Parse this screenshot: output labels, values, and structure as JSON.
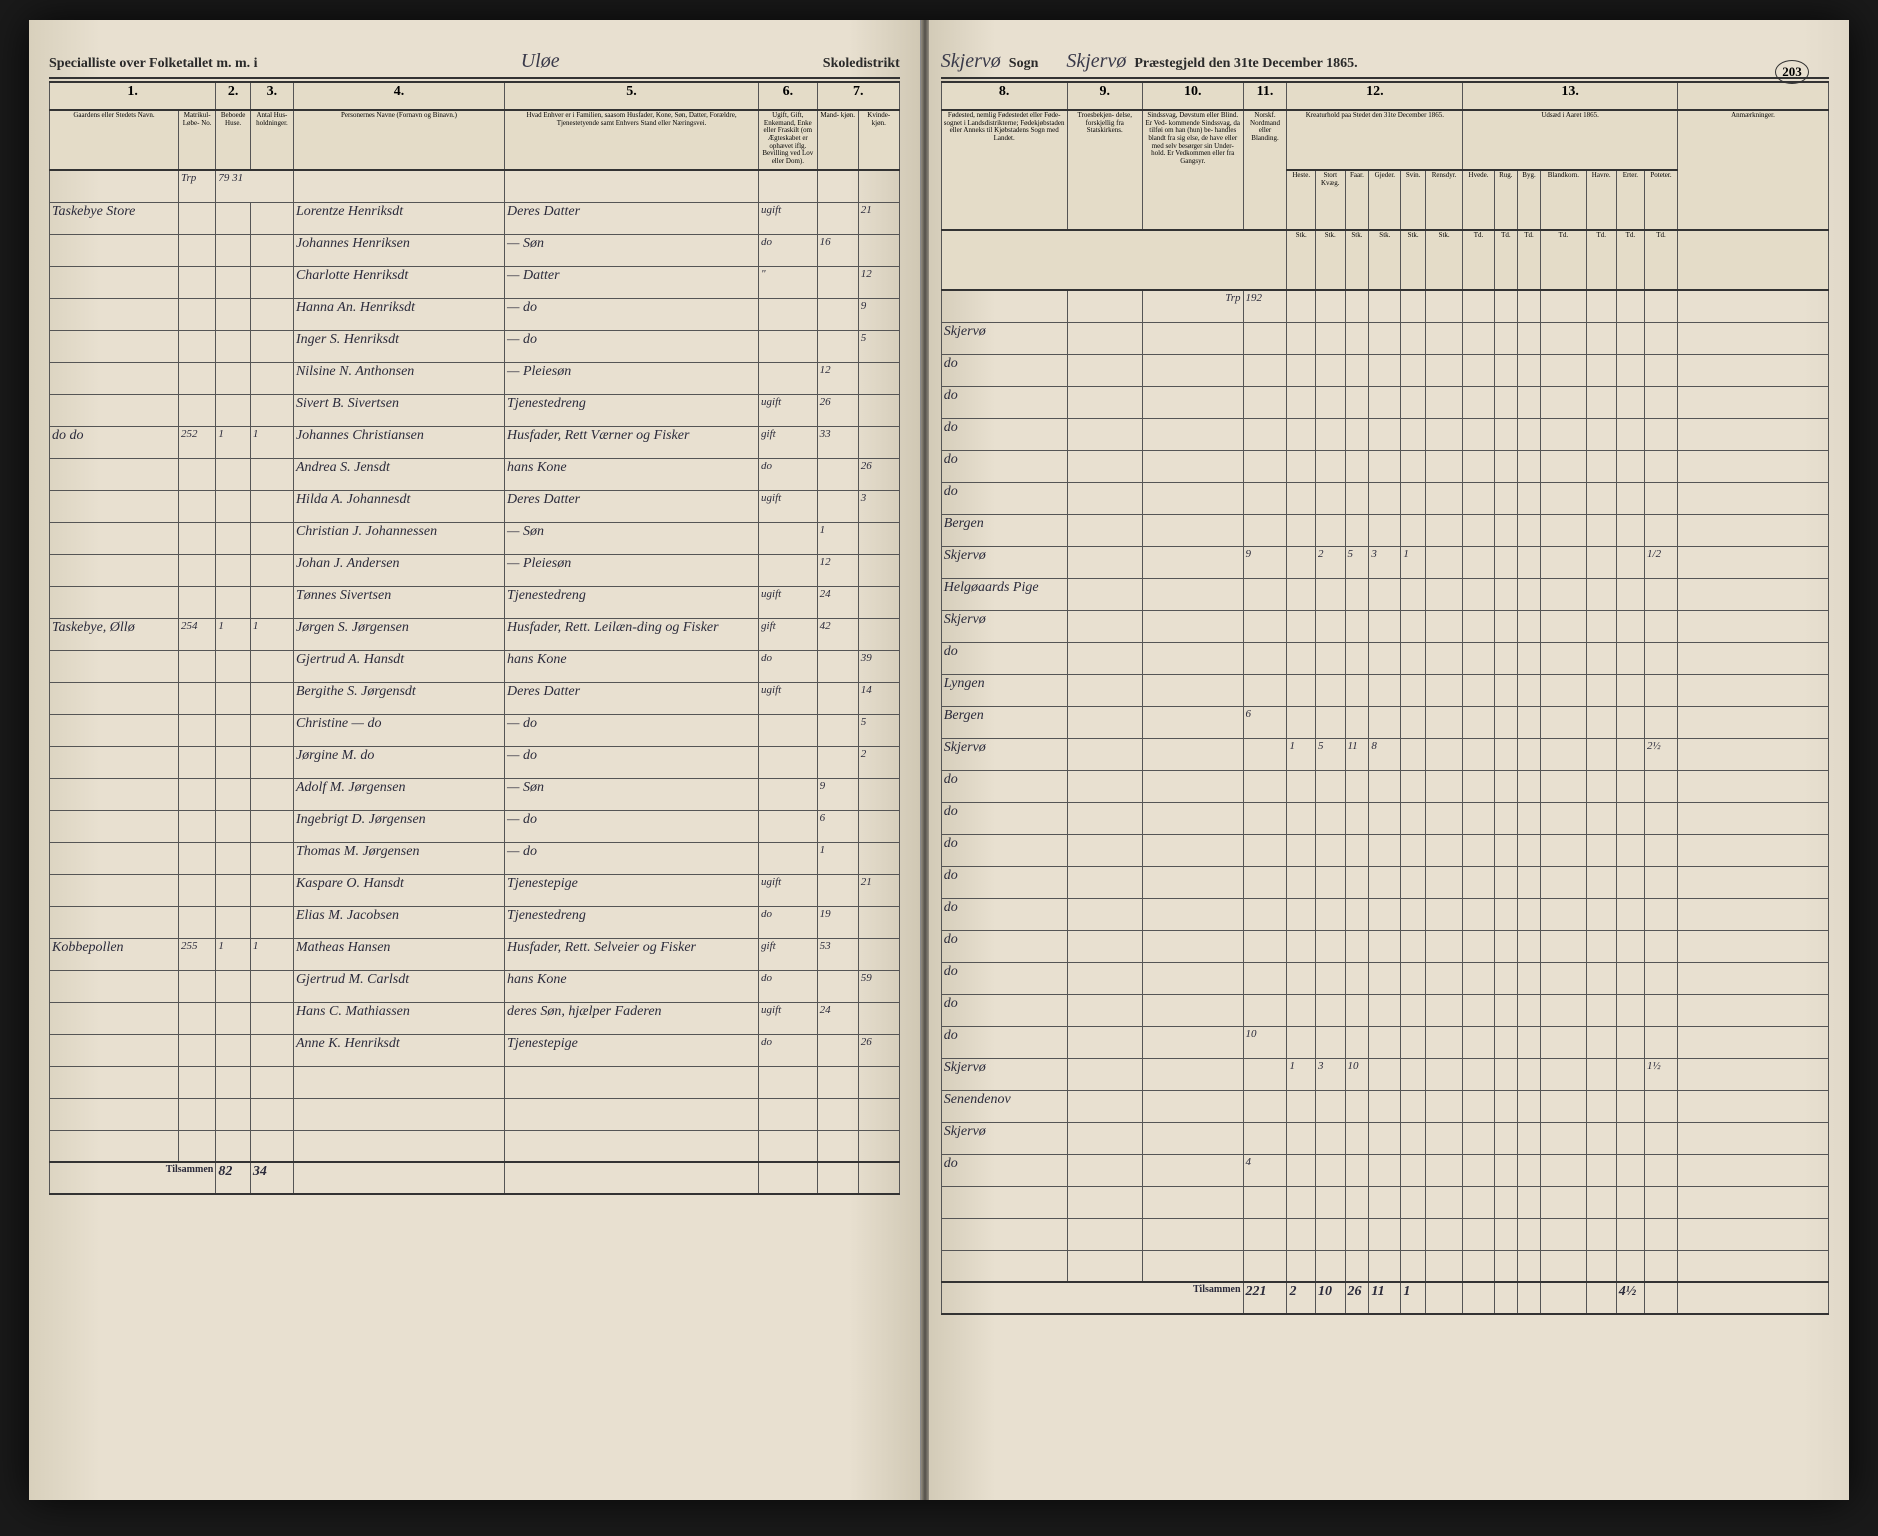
{
  "page_number": "203",
  "header": {
    "left_title": "Specialliste over Folketallet m. m. i",
    "district_hand": "Uløe",
    "school_label": "Skoledistrikt",
    "sogn_hand": "Skjervø",
    "sogn_label": "Sogn",
    "parish_hand": "Skjervø",
    "parish_label": "Præstegjeld den 31te December 1865."
  },
  "left_columns": {
    "c1": "1.",
    "c2": "2.",
    "c3": "3.",
    "c4": "4.",
    "c5": "5.",
    "c6": "6.",
    "c7": "7.",
    "c1_sub": "Gaardens eller Stedets\nNavn.",
    "c1_sub2": "Matrikul-\nLøbe-\nNo.",
    "c2_sub": "Beboede Huse.",
    "c3_sub": "Antal Hus-\nholdninger.",
    "c4_sub": "Personernes Navne (Fornavn og Binavn.)",
    "c5_sub": "Hvad Enhver er i Familien, saasom Husfader,\nKone, Søn, Datter, Forældre, Tjenestetyende\nsamt\nEnhvers Stand eller Næringsvei.",
    "c6_sub": "Ugift, Gift,\nEnkemand,\nEnke eller\nFraskilt (om\nÆgteskabet er\nophævet iflg.\nBevilling\nved Lov eller\nDom).",
    "c7_sub": "Alder.\nDet levende Alders-\naar anføres.",
    "c7a_sub": "Mand-\nkjøn.",
    "c7b_sub": "Kvinde-\nkjøn."
  },
  "right_columns": {
    "c8": "8.",
    "c9": "9.",
    "c10": "10.",
    "c11": "11.",
    "c12": "12.",
    "c13": "13.",
    "c8_sub": "Fødested,\nnemlig Fødestedet eller Føde-\nsognet i Landsdistrikterne;\nFødekjøbstaden eller Anneks til\nKjøbstadens Sogn med\nLandet.",
    "c9_sub": "Troesbekjen-\ndelse,\nforskjellig fra\nStatskirkens.",
    "c10_sub": "Sindssvag, Døvstum\neller Blind. Er Ved-\nkommende Sindssvag, da tilføi\nom han (hun) be-\nhandles blandt fra sig\nelse, de have eller med\nselv besørger sin Under-\nhold.\nEr Vedkommen eller fra\nGangsyr.",
    "c11_sub": "Norskf. Nordmand eller\nBlanding.",
    "c12_sub": "Kreaturhold paa Stedet\nden 31te December 1865.",
    "c12_heste": "Heste.",
    "c12_stort": "Stort\nKvæg.",
    "c12_faar": "Faar.",
    "c12_gjeder": "Gjeder.",
    "c12_svin": "Svin.",
    "c12_rensdyr": "Rensdyr.",
    "c13_sub": "Udsæd i\nAaret 1865.",
    "c13_hvede": "Hvede.",
    "c13_rug": "Rug.",
    "c13_byg": "Byg.",
    "c13_bland": "Blandkorn.",
    "c13_havre": "Havre.",
    "c13_erter": "Erter.",
    "c13_pot": "Poteter.",
    "anm": "Anmærkninger.",
    "unit": "Stk.",
    "unit2": "Td."
  },
  "carry": {
    "label_left": "Trp",
    "left_val": "79 31",
    "label_right": "Trp",
    "right_val": "192"
  },
  "rows": [
    {
      "place": "Taskebye Store",
      "lobe": "",
      "h": "",
      "hh": "",
      "name": "Lorentze Henriksdt",
      "role": "Deres Datter",
      "status": "ugift",
      "m": "",
      "k": "21",
      "birth": "Skjervø"
    },
    {
      "name": "Johannes Henriksen",
      "role": "— Søn",
      "status": "do",
      "m": "16",
      "k": "",
      "birth": "do"
    },
    {
      "name": "Charlotte Henriksdt",
      "role": "— Datter",
      "status": "\"",
      "m": "",
      "k": "12",
      "birth": "do"
    },
    {
      "name": "Hanna An. Henriksdt",
      "role": "— do",
      "status": "",
      "m": "",
      "k": "9",
      "birth": "do"
    },
    {
      "name": "Inger S. Henriksdt",
      "role": "— do",
      "status": "",
      "m": "",
      "k": "5",
      "birth": "do"
    },
    {
      "name": "Nilsine N. Anthonsen",
      "role": "— Pleiesøn",
      "status": "",
      "m": "12",
      "k": "",
      "birth": "do"
    },
    {
      "name": "Sivert B. Sivertsen",
      "role": "Tjenestedreng",
      "status": "ugift",
      "m": "26",
      "k": "",
      "birth": "Bergen"
    },
    {
      "place": "do   do",
      "lobe": "252",
      "h": "1",
      "hh": "1",
      "name": "Johannes Christiansen",
      "role": "Husfader, Rett Værner og Fisker",
      "status": "gift",
      "m": "33",
      "k": "",
      "birth": "Skjervø",
      "c11": "9",
      "c12": [
        "",
        "2",
        "5",
        "3",
        "1",
        ""
      ],
      "c13": [
        "",
        "",
        "",
        "",
        "",
        "",
        "1/2"
      ]
    },
    {
      "name": "Andrea S. Jensdt",
      "role": "hans Kone",
      "status": "do",
      "m": "",
      "k": "26",
      "birth": "Helgøaards Pige"
    },
    {
      "name": "Hilda A. Johannesdt",
      "role": "Deres Datter",
      "status": "ugift",
      "m": "",
      "k": "3",
      "birth": "Skjervø"
    },
    {
      "name": "Christian J. Johannessen",
      "role": "— Søn",
      "status": "",
      "m": "1",
      "k": "",
      "birth": "do"
    },
    {
      "name": "Johan J. Andersen",
      "role": "— Pleiesøn",
      "status": "",
      "m": "12",
      "k": "",
      "birth": "Lyngen"
    },
    {
      "name": "Tønnes Sivertsen",
      "role": "Tjenestedreng",
      "status": "ugift",
      "m": "24",
      "k": "",
      "birth": "Bergen",
      "c11": "6"
    },
    {
      "place": "Taskebye, Øllø",
      "lobe": "254",
      "h": "1",
      "hh": "1",
      "name": "Jørgen S. Jørgensen",
      "role": "Husfader, Rett. Leilæn-ding og Fisker",
      "status": "gift",
      "m": "42",
      "k": "",
      "birth": "Skjervø",
      "c12": [
        "1",
        "5",
        "11",
        "8",
        "",
        ""
      ],
      "c13": [
        "",
        "",
        "",
        "",
        "",
        "",
        "2½"
      ]
    },
    {
      "name": "Gjertrud A. Hansdt",
      "role": "hans Kone",
      "status": "do",
      "m": "",
      "k": "39",
      "birth": "do"
    },
    {
      "name": "Bergithe S. Jørgensdt",
      "role": "Deres Datter",
      "status": "ugift",
      "m": "",
      "k": "14",
      "birth": "do"
    },
    {
      "name": "Christine — do",
      "role": "— do",
      "status": "",
      "m": "",
      "k": "5",
      "birth": "do"
    },
    {
      "name": "Jørgine M. do",
      "role": "— do",
      "status": "",
      "m": "",
      "k": "2",
      "birth": "do"
    },
    {
      "name": "Adolf M. Jørgensen",
      "role": "— Søn",
      "status": "",
      "m": "9",
      "k": "",
      "birth": "do"
    },
    {
      "name": "Ingebrigt D. Jørgensen",
      "role": "— do",
      "status": "",
      "m": "6",
      "k": "",
      "birth": "do"
    },
    {
      "name": "Thomas M. Jørgensen",
      "role": "— do",
      "status": "",
      "m": "1",
      "k": "",
      "birth": "do"
    },
    {
      "name": "Kaspare O. Hansdt",
      "role": "Tjenestepige",
      "status": "ugift",
      "m": "",
      "k": "21",
      "birth": "do"
    },
    {
      "name": "Elias M. Jacobsen",
      "role": "Tjenestedreng",
      "status": "do",
      "m": "19",
      "k": "",
      "birth": "do",
      "c11": "10"
    },
    {
      "place": "Kobbepollen",
      "lobe": "255",
      "h": "1",
      "hh": "1",
      "name": "Matheas Hansen",
      "role": "Husfader, Rett. Selveier og Fisker",
      "status": "gift",
      "m": "53",
      "k": "",
      "birth": "Skjervø",
      "c12": [
        "1",
        "3",
        "10",
        "",
        "",
        ""
      ],
      "c13": [
        "",
        "",
        "",
        "",
        "",
        "",
        "1½"
      ]
    },
    {
      "name": "Gjertrud M. Carlsdt",
      "role": "hans Kone",
      "status": "do",
      "m": "",
      "k": "59",
      "birth": "Senendenov"
    },
    {
      "name": "Hans C. Mathiassen",
      "role": "deres Søn, hjælper Faderen",
      "status": "ugift",
      "m": "24",
      "k": "",
      "birth": "Skjervø"
    },
    {
      "name": "Anne K. Henriksdt",
      "role": "Tjenestepige",
      "status": "do",
      "m": "",
      "k": "26",
      "birth": "do",
      "c11": "4"
    }
  ],
  "footer": {
    "left_label": "Tilsammen",
    "left_vals": [
      "82",
      "34"
    ],
    "right_label": "Tilsammen",
    "right_vals": [
      "221",
      "2",
      "10",
      "26",
      "11",
      "1",
      "",
      "",
      "",
      "",
      "",
      "",
      "4½"
    ]
  },
  "colors": {
    "paper": "#e8e0d0",
    "ink": "#2a2a3a",
    "rule": "#555555"
  }
}
